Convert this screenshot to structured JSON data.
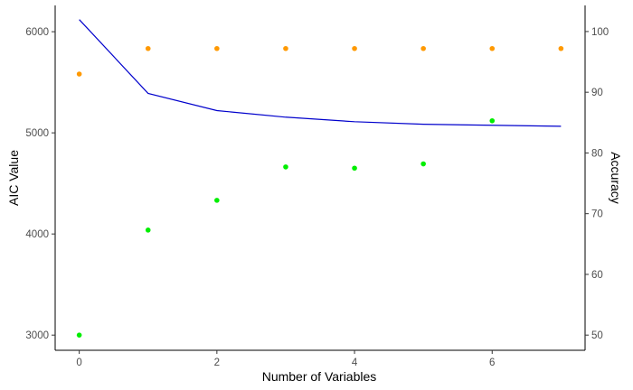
{
  "chart_data": {
    "type": "line",
    "title": "",
    "xlabel": "Number of Variables",
    "ylabel_left": "AIC Value",
    "ylabel_right": "Accuracy",
    "xlim": [
      -0.35,
      7.35
    ],
    "ylim_left": [
      2850,
      6260
    ],
    "ylim_right": [
      47.5,
      104.3
    ],
    "x_ticks": [
      0,
      2,
      4,
      6
    ],
    "y_left_ticks": [
      3000,
      4000,
      5000,
      6000
    ],
    "y_right_ticks": [
      50,
      60,
      70,
      80,
      90,
      100
    ],
    "grid": false,
    "legend": "none",
    "series": [
      {
        "axis": "left",
        "kind": "line",
        "color": "#0000cc",
        "x": [
          0,
          1,
          2,
          3,
          4,
          5,
          6,
          7
        ],
        "values": [
          6120,
          5390,
          5220,
          5155,
          5110,
          5085,
          5075,
          5065
        ]
      },
      {
        "axis": "right",
        "kind": "points",
        "color": "#ff9900",
        "x": [
          0,
          1,
          2,
          3,
          4,
          5,
          6,
          7
        ],
        "values": [
          93,
          97.2,
          97.2,
          97.2,
          97.2,
          97.2,
          97.2,
          97.2
        ]
      },
      {
        "axis": "right",
        "kind": "points",
        "color": "#00ee00",
        "x": [
          0,
          1,
          2,
          3,
          4,
          5,
          6
        ],
        "values": [
          50,
          67.3,
          72.2,
          77.7,
          77.5,
          78.2,
          85.3
        ]
      }
    ]
  }
}
